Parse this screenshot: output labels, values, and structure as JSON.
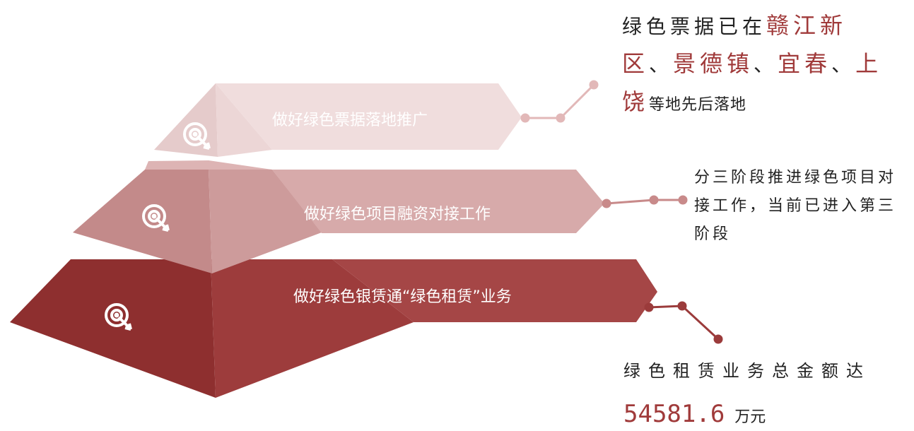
{
  "colors": {
    "tier1_front": "#e9d3d3",
    "tier1_side": "#f3e4e4",
    "tier2_front": "#c38a8a",
    "tier2_side": "#d7aaaa",
    "tier3_front": "#8e2f2f",
    "tier3_side": "#a54646",
    "connector_light": "#e2b8b8",
    "connector_mid": "#c88a8a",
    "connector_dark": "#9b3b3b",
    "accent_text": "#a03a3a"
  },
  "tiers": [
    {
      "label": "做好绿色票据落地推广",
      "icon": "target-icon"
    },
    {
      "label": "做好绿色项目融资对接工作",
      "icon": "target-icon"
    },
    {
      "label": "做好绿色银赁通“绿色租赁”业务",
      "icon": "target-icon"
    }
  ],
  "notes": {
    "note1": {
      "prefix": "绿色票据已在",
      "city1": "赣江新区",
      "sep1": "、",
      "city2": "景德镇",
      "sep2": "、",
      "city3": "宜春",
      "sep3": "、",
      "city4": "上饶",
      "suffix": "等地先后落地"
    },
    "note2": {
      "text": "分三阶段推进绿色项目对接工作，当前已进入第三阶段"
    },
    "note3": {
      "text": "绿色租赁业务总金额达",
      "amount": "54581.6",
      "unit": "万元"
    }
  }
}
